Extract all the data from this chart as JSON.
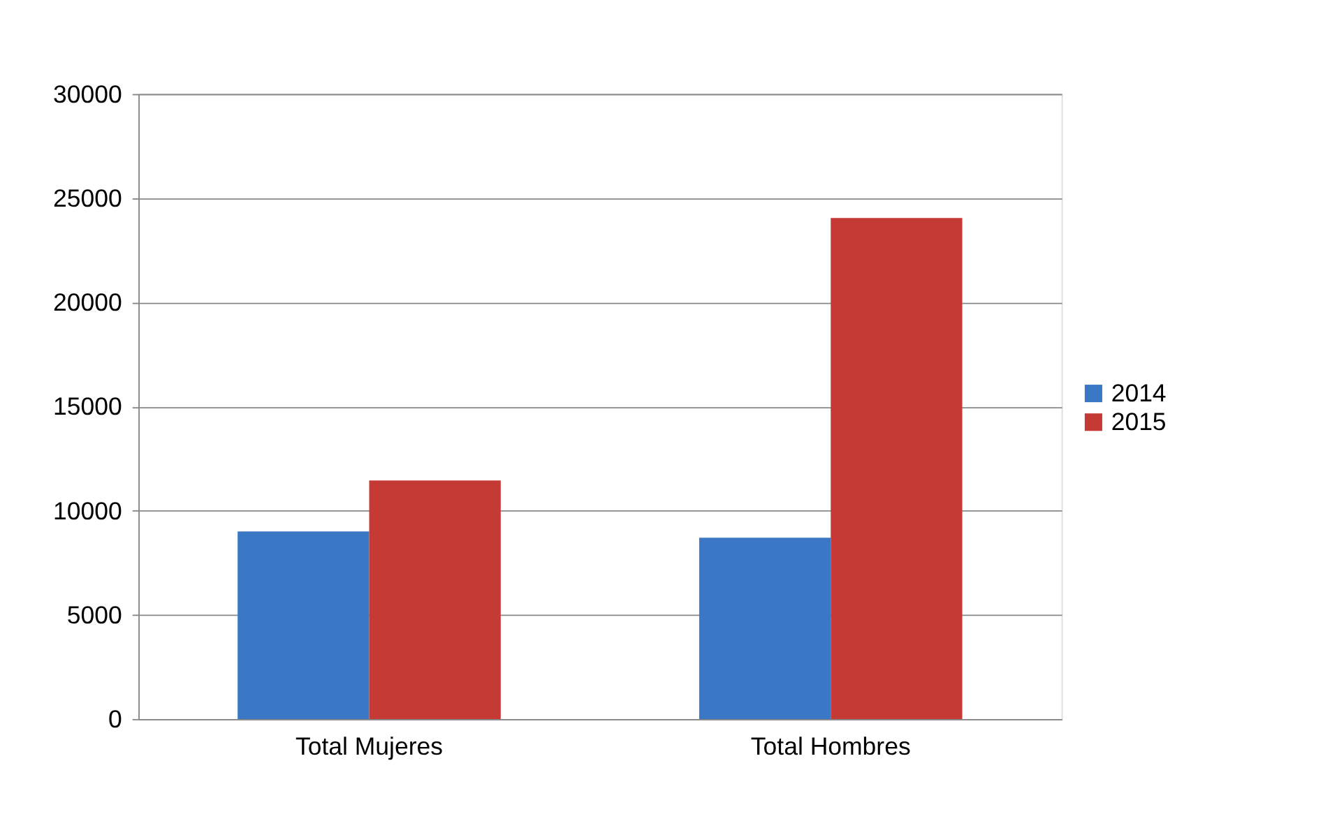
{
  "chart_data": {
    "type": "bar",
    "categories": [
      "Total Mujeres",
      "Total Hombres"
    ],
    "series": [
      {
        "name": "2014",
        "color": "#3a78c6",
        "values": [
          9000,
          8700
        ]
      },
      {
        "name": "2015",
        "color": "#c63a36",
        "values": [
          11450,
          24050
        ]
      }
    ],
    "ylim": [
      0,
      30000
    ],
    "yticks": [
      0,
      5000,
      10000,
      15000,
      20000,
      25000,
      30000
    ],
    "grid": "y",
    "legend": "right"
  }
}
